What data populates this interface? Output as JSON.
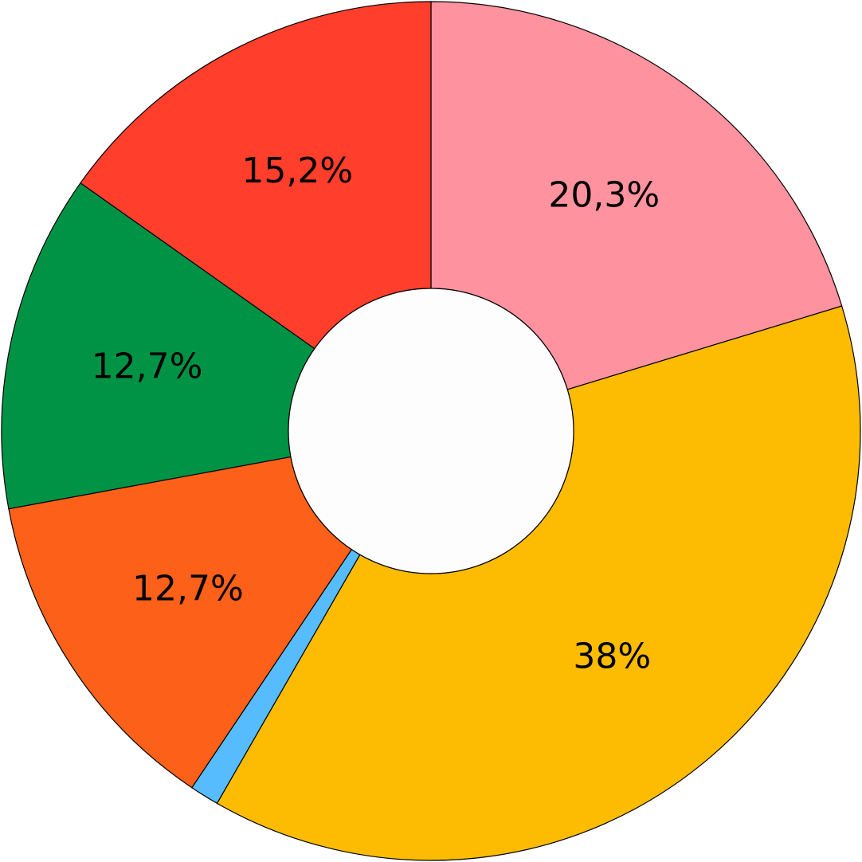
{
  "chart_data": {
    "type": "pie",
    "values": [
      20.3,
      38,
      1.1,
      12.7,
      12.7,
      15.2
    ],
    "value_labels": [
      "20,3%",
      "38%",
      null,
      "12,7%",
      "12,7%",
      "15,2%"
    ],
    "colors": [
      "#ff929f",
      "#fdbc02",
      "#56bcfe",
      "#fd6018",
      "#009346",
      "#ff3e2c"
    ],
    "donut": true
  }
}
